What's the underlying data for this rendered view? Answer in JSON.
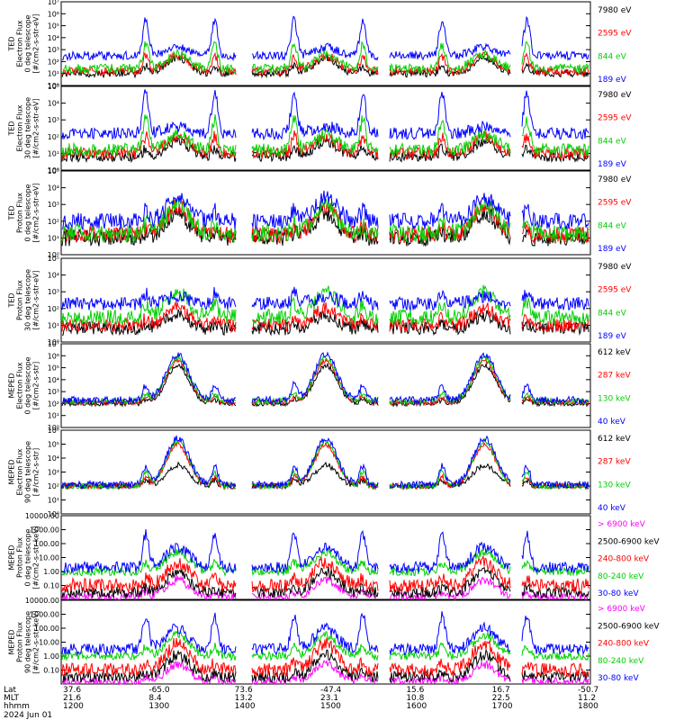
{
  "colors": {
    "black": "#000000",
    "red": "#ff0000",
    "green": "#00d000",
    "blue": "#0000ff",
    "magenta": "#ff00ff"
  },
  "chart_data": [
    {
      "type": "line",
      "ylabel": [
        "TED",
        "Electron Flux",
        "0 deg telescope",
        "[#/cm2-s-str-eV]"
      ],
      "log_scale": true,
      "ylim": [
        1,
        10000000.0
      ],
      "ytick_labels": [
        "10⁰",
        "10¹",
        "10²",
        "10³",
        "10⁴",
        "10⁵",
        "10⁶",
        "10⁷"
      ],
      "series": [
        {
          "name": "7980 eV",
          "color": "#000000",
          "base": 1.0,
          "peak": 2.3,
          "noise": 0.3,
          "spike": 0.6
        },
        {
          "name": "2595 eV",
          "color": "#ff0000",
          "base": 1.2,
          "peak": 2.5,
          "noise": 0.35,
          "spike": 1.2
        },
        {
          "name": "844 eV",
          "color": "#00d000",
          "base": 1.4,
          "peak": 2.6,
          "noise": 0.4,
          "spike": 2.0
        },
        {
          "name": "189 eV",
          "color": "#0000ff",
          "base": 2.5,
          "peak": 3.2,
          "noise": 0.35,
          "spike": 3.0
        }
      ]
    },
    {
      "type": "line",
      "ylabel": [
        "TED",
        "Electron Flux",
        "30 deg telescope",
        "[#/cm2-s-str-eV]"
      ],
      "log_scale": true,
      "ylim": [
        1,
        100000.0
      ],
      "ytick_labels": [
        "10⁰",
        "10¹",
        "10²",
        "10³",
        "10⁴",
        "10⁵"
      ],
      "series": [
        {
          "name": "7980 eV",
          "color": "#000000",
          "base": 0.8,
          "peak": 1.7,
          "noise": 0.3,
          "spike": 0.5
        },
        {
          "name": "2595 eV",
          "color": "#ff0000",
          "base": 1.0,
          "peak": 2.0,
          "noise": 0.35,
          "spike": 1.0
        },
        {
          "name": "844 eV",
          "color": "#00d000",
          "base": 1.2,
          "peak": 2.1,
          "noise": 0.4,
          "spike": 1.8
        },
        {
          "name": "189 eV",
          "color": "#0000ff",
          "base": 2.2,
          "peak": 2.6,
          "noise": 0.35,
          "spike": 2.4
        }
      ]
    },
    {
      "type": "line",
      "ylabel": [
        "TED",
        "Proton Flux",
        "0 deg telescope",
        "[#/cm2-s-str-eV]"
      ],
      "log_scale": true,
      "ylim": [
        1,
        100000.0
      ],
      "ytick_labels": [
        "10⁰",
        "10¹",
        "10²",
        "10³",
        "10⁴",
        "10⁵"
      ],
      "series": [
        {
          "name": "7980 eV",
          "color": "#000000",
          "base": 1.0,
          "peak": 2.5,
          "noise": 0.5,
          "spike": 0.3
        },
        {
          "name": "2595 eV",
          "color": "#ff0000",
          "base": 1.2,
          "peak": 2.9,
          "noise": 0.5,
          "spike": 0.4
        },
        {
          "name": "844 eV",
          "color": "#00d000",
          "base": 1.3,
          "peak": 3.0,
          "noise": 0.55,
          "spike": 0.5
        },
        {
          "name": "189 eV",
          "color": "#0000ff",
          "base": 2.0,
          "peak": 3.4,
          "noise": 0.5,
          "spike": 0.6
        }
      ]
    },
    {
      "type": "line",
      "ylabel": [
        "TED",
        "Proton Flux",
        "30 deg telescope",
        "[#/cm2-s-str-eV]"
      ],
      "log_scale": true,
      "ylim": [
        1,
        100000.0
      ],
      "ytick_labels": [
        "10⁰",
        "10¹",
        "10²",
        "10³",
        "10⁴",
        "10⁵"
      ],
      "series": [
        {
          "name": "7980 eV",
          "color": "#000000",
          "base": 0.8,
          "peak": 1.6,
          "noise": 0.4,
          "spike": 0.3
        },
        {
          "name": "2595 eV",
          "color": "#ff0000",
          "base": 1.0,
          "peak": 2.0,
          "noise": 0.4,
          "spike": 0.4
        },
        {
          "name": "844 eV",
          "color": "#00d000",
          "base": 1.5,
          "peak": 3.0,
          "noise": 0.45,
          "spike": 0.8
        },
        {
          "name": "189 eV",
          "color": "#0000ff",
          "base": 2.3,
          "peak": 2.7,
          "noise": 0.4,
          "spike": 0.6
        }
      ]
    },
    {
      "type": "line",
      "ylabel": [
        "MEPED",
        "Electron Flux",
        "0 deg telescope",
        "[#/cm2-s-str]"
      ],
      "log_scale": true,
      "ylim": [
        1,
        10000000.0
      ],
      "ytick_labels": [
        "10⁰",
        "10¹",
        "10²",
        "10³",
        "10⁴",
        "10⁵",
        "10⁶",
        "10⁷"
      ],
      "series": [
        {
          "name": "612 keV",
          "color": "#000000",
          "base": 2.0,
          "peak": 5.2,
          "noise": 0.2,
          "spike": 0.3
        },
        {
          "name": "287 keV",
          "color": "#ff0000",
          "base": 2.1,
          "peak": 5.6,
          "noise": 0.2,
          "spike": 0.4
        },
        {
          "name": "130 keV",
          "color": "#00d000",
          "base": 2.2,
          "peak": 5.8,
          "noise": 0.25,
          "spike": 0.6
        },
        {
          "name": "40 keV",
          "color": "#0000ff",
          "base": 2.3,
          "peak": 6.1,
          "noise": 0.3,
          "spike": 1.2
        }
      ]
    },
    {
      "type": "line",
      "ylabel": [
        "MEPED",
        "Electron Flux",
        "90 deg telescope",
        "[#/cm2-s-str]"
      ],
      "log_scale": true,
      "ylim": [
        1,
        1000000.0
      ],
      "ytick_labels": [
        "10⁰",
        "10¹",
        "10²",
        "10³",
        "10⁴",
        "10⁵",
        "10⁶"
      ],
      "series": [
        {
          "name": "612 keV",
          "color": "#000000",
          "base": 2.0,
          "peak": 3.5,
          "noise": 0.2,
          "spike": 0.4
        },
        {
          "name": "287 keV",
          "color": "#ff0000",
          "base": 2.0,
          "peak": 5.0,
          "noise": 0.2,
          "spike": 0.6
        },
        {
          "name": "130 keV",
          "color": "#00d000",
          "base": 2.0,
          "peak": 5.2,
          "noise": 0.2,
          "spike": 1.0
        },
        {
          "name": "40 keV",
          "color": "#0000ff",
          "base": 2.1,
          "peak": 5.4,
          "noise": 0.25,
          "spike": 1.3
        }
      ]
    },
    {
      "type": "line",
      "ylabel": [
        "MEPED",
        "Proton Flux",
        "0 deg telescope",
        "[#/cm2-s-str-keV]"
      ],
      "log_scale": true,
      "ylim": [
        0.01,
        10000
      ],
      "ytick_labels": [
        "0.10",
        "1.00",
        "10.00",
        "100.00",
        "1000.00",
        "10000.00"
      ],
      "series": [
        {
          "name": "> 6900 keV",
          "color": "#ff00ff",
          "base": -1.8,
          "peak": -0.6,
          "noise": 0.3,
          "spike": 0.3
        },
        {
          "name": "2500-6900 keV",
          "color": "#000000",
          "base": -1.5,
          "peak": 0.0,
          "noise": 0.4,
          "spike": 0.3
        },
        {
          "name": "240-800 keV",
          "color": "#ff0000",
          "base": -1.0,
          "peak": 0.7,
          "noise": 0.5,
          "spike": 0.5
        },
        {
          "name": "80-240 keV",
          "color": "#00d000",
          "base": 0.0,
          "peak": 1.4,
          "noise": 0.3,
          "spike": 0.6
        },
        {
          "name": "30-80 keV",
          "color": "#0000ff",
          "base": 0.3,
          "peak": 1.8,
          "noise": 0.4,
          "spike": 2.4
        }
      ]
    },
    {
      "type": "line",
      "ylabel": [
        "MEPED",
        "Proton Flux",
        "90 deg telescope",
        "[#/cm2-s-str-keV]"
      ],
      "log_scale": true,
      "ylim": [
        0.01,
        10000
      ],
      "ytick_labels": [
        "0.10",
        "1.00",
        "10.00",
        "100.00",
        "1000.00",
        "10000.00"
      ],
      "series": [
        {
          "name": "> 6900 keV",
          "color": "#ff00ff",
          "base": -1.8,
          "peak": -0.6,
          "noise": 0.3,
          "spike": 0.3
        },
        {
          "name": "2500-6900 keV",
          "color": "#000000",
          "base": -1.5,
          "peak": 0.1,
          "noise": 0.4,
          "spike": 0.3
        },
        {
          "name": "240-800 keV",
          "color": "#ff0000",
          "base": -1.0,
          "peak": 0.9,
          "noise": 0.5,
          "spike": 0.5
        },
        {
          "name": "80-240 keV",
          "color": "#00d000",
          "base": 0.0,
          "peak": 1.5,
          "noise": 0.3,
          "spike": 0.7
        },
        {
          "name": "30-80 keV",
          "color": "#0000ff",
          "base": 0.5,
          "peak": 2.0,
          "noise": 0.4,
          "spike": 2.4
        }
      ]
    }
  ],
  "time_axis": {
    "row_labels": [
      "Lat",
      "MLT",
      "hhmm"
    ],
    "date_label": "2024 Jun 01",
    "ticks": [
      {
        "lat": "37.6",
        "mlt": "21.6",
        "hhmm": "1200"
      },
      {
        "lat": "-65.0",
        "mlt": "8.4",
        "hhmm": "1300"
      },
      {
        "lat": "73.6",
        "mlt": "13.2",
        "hhmm": "1400"
      },
      {
        "lat": "-47.4",
        "mlt": "23.1",
        "hhmm": "1500"
      },
      {
        "lat": "15.6",
        "mlt": "10.8",
        "hhmm": "1600"
      },
      {
        "lat": "16.7",
        "mlt": "22.5",
        "hhmm": "1700"
      },
      {
        "lat": "-50.7",
        "mlt": "11.2",
        "hhmm": "1800"
      }
    ]
  }
}
